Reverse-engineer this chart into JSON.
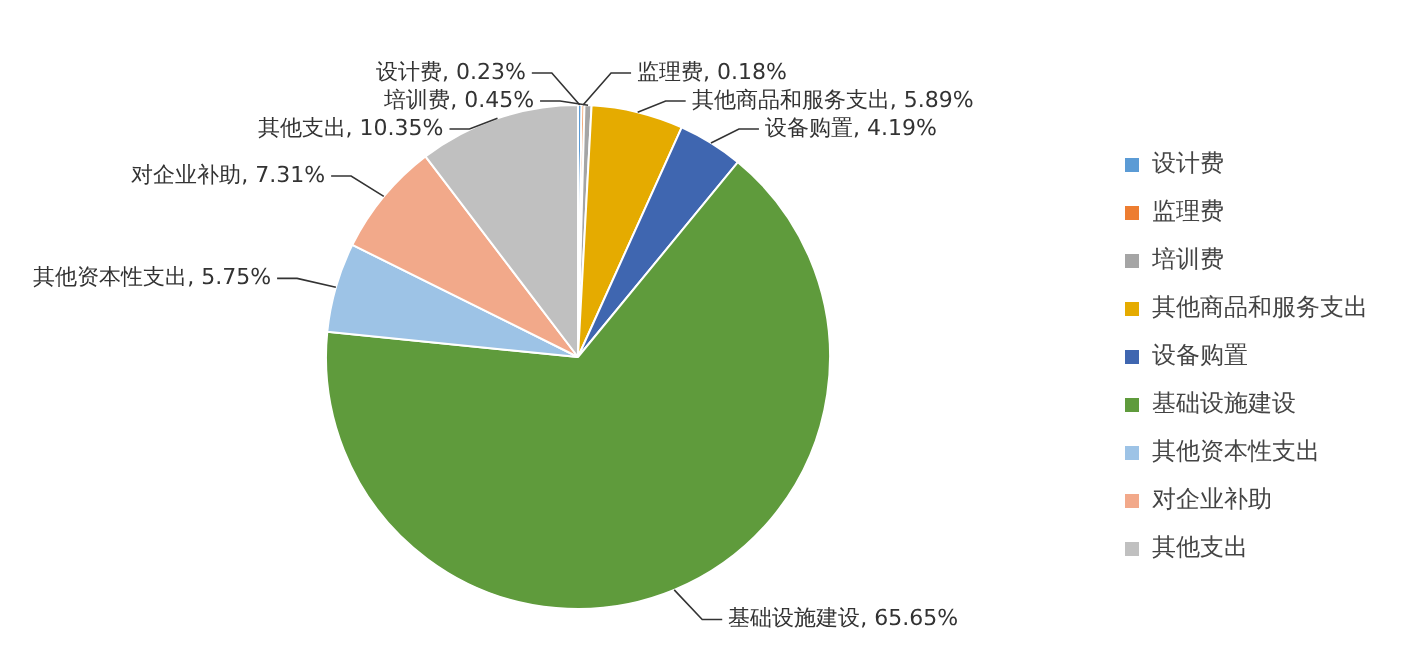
{
  "chart_data": {
    "type": "pie",
    "categories": [
      "设计费",
      "监理费",
      "培训费",
      "其他商品和服务支出",
      "设备购置",
      "基础设施建设",
      "其他资本性支出",
      "对企业补助",
      "其他支出"
    ],
    "values": [
      0.23,
      0.18,
      0.45,
      5.89,
      4.19,
      65.65,
      5.75,
      7.31,
      10.35
    ],
    "value_labels": [
      "设计费, 0.23%",
      "监理费, 0.18%",
      "培训费, 0.45%",
      "其他商品和服务支出, 5.89%",
      "设备购置, 4.19%",
      "基础设施建设, 65.65%",
      "其他资本性支出, 5.75%",
      "对企业补助, 7.31%",
      "其他支出, 10.35%"
    ],
    "colors": [
      "#5b9bd5",
      "#ed7d31",
      "#a5a5a5",
      "#e5ab00",
      "#3f66b0",
      "#5f9b3c",
      "#9dc3e6",
      "#f2a98a",
      "#c0c0c0"
    ],
    "legend": "right"
  }
}
